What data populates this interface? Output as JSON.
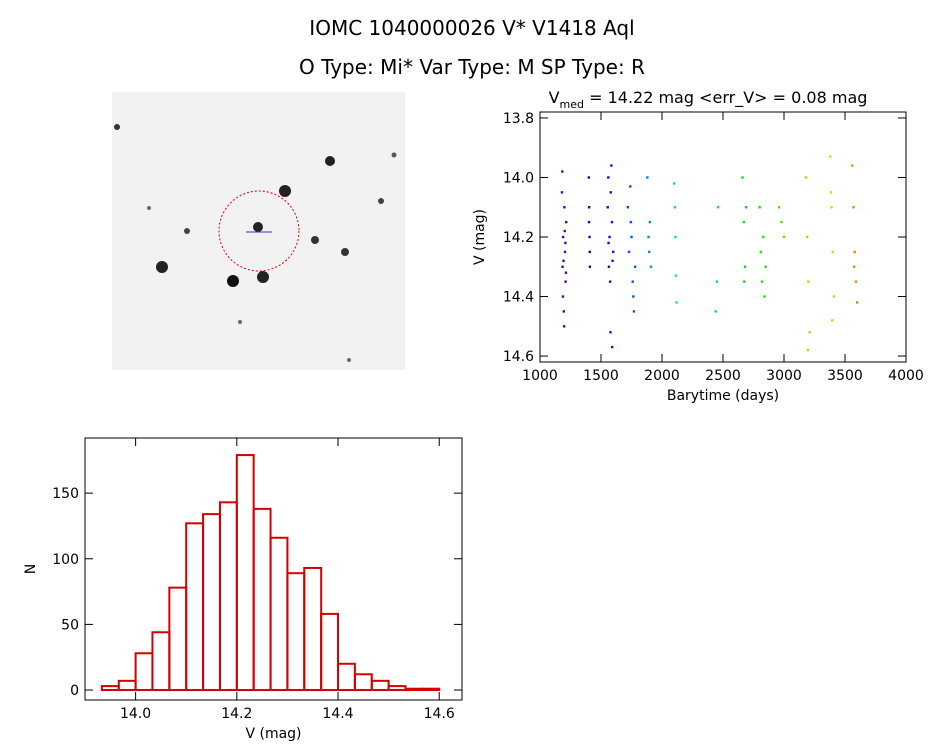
{
  "header": {
    "title": "IOMC 1040000026    V* V1418 Aql",
    "subtitle": "O Type: Mi*  Var Type: M  SP Type: R"
  },
  "chart_data": [
    {
      "type": "scatter",
      "title": "V",
      "title_subscript": "med",
      "title_rest": " = 14.22 mag <err_V> = 0.08 mag",
      "xlabel": "Barytime (days)",
      "ylabel": "V (mag)",
      "xlim": [
        1000,
        4000
      ],
      "xticks": [
        1000,
        1500,
        2000,
        2500,
        3000,
        3500,
        4000
      ],
      "ylim": [
        14.62,
        13.78
      ],
      "yticks": [
        13.8,
        {
          "value": 14,
          "label": "14.0"
        },
        14.2,
        14.4,
        14.6
      ],
      "colormap": "rainbow",
      "x": [
        1180,
        1185,
        1190,
        1195,
        1200,
        1205,
        1210,
        1215,
        1188,
        1198,
        1208,
        1183,
        1193,
        1203,
        1213,
        1400,
        1403,
        1406,
        1409,
        1402,
        1408,
        1555,
        1560,
        1565,
        1570,
        1575,
        1580,
        1585,
        1590,
        1595,
        1600,
        1562,
        1578,
        1592,
        1720,
        1730,
        1740,
        1750,
        1760,
        1770,
        1780,
        1745,
        1765,
        1880,
        1890,
        1900,
        1910,
        1895,
        2100,
        2105,
        2110,
        2115,
        2120,
        2440,
        2450,
        2460,
        2660,
        2670,
        2680,
        2690,
        2675,
        2800,
        2810,
        2820,
        2830,
        2840,
        2850,
        2960,
        2980,
        3000,
        3180,
        3190,
        3200,
        3210,
        3195,
        3380,
        3390,
        3400,
        3410,
        3395,
        3385,
        3560,
        3570,
        3580,
        3590,
        3600,
        3575
      ],
      "values": [
        14.05,
        14.3,
        14.2,
        14.45,
        14.1,
        14.25,
        14.35,
        14.15,
        14.4,
        14.5,
        14.22,
        13.98,
        14.28,
        14.18,
        14.32,
        14.0,
        14.1,
        14.2,
        14.3,
        14.15,
        14.25,
        14.1,
        14.0,
        14.3,
        14.2,
        14.35,
        14.05,
        13.96,
        14.15,
        14.28,
        14.25,
        14.22,
        14.52,
        14.57,
        14.1,
        14.25,
        14.03,
        14.2,
        14.35,
        14.45,
        14.3,
        14.15,
        14.4,
        14.0,
        14.2,
        14.15,
        14.3,
        14.25,
        14.02,
        14.1,
        14.2,
        14.33,
        14.42,
        14.45,
        14.35,
        14.1,
        14.0,
        14.15,
        14.3,
        14.1,
        14.35,
        14.1,
        14.25,
        14.35,
        14.2,
        14.4,
        14.3,
        14.1,
        14.15,
        14.2,
        14.0,
        14.2,
        14.35,
        14.52,
        14.58,
        13.93,
        14.1,
        14.25,
        14.4,
        14.48,
        14.05,
        13.96,
        14.1,
        14.25,
        14.35,
        14.42,
        14.3
      ]
    },
    {
      "type": "histogram",
      "xlabel": "V (mag)",
      "ylabel": "N",
      "color": "#d40000",
      "xlim": [
        13.9,
        14.645
      ],
      "xticks": [
        {
          "value": 14,
          "label": "14.0"
        },
        14.2,
        14.4,
        14.6
      ],
      "ylim": [
        -7.6,
        192
      ],
      "yticks": [
        0,
        50,
        100,
        150
      ],
      "bins": [
        13.9333,
        13.9667,
        14.0,
        14.0333,
        14.0667,
        14.1,
        14.1333,
        14.1667,
        14.2,
        14.2333,
        14.2667,
        14.3,
        14.3333,
        14.3667,
        14.4,
        14.4333,
        14.4667,
        14.5,
        14.5333,
        14.5667,
        14.6
      ],
      "values": [
        3,
        7,
        28,
        44,
        78,
        127,
        134,
        143,
        179,
        138,
        116,
        89,
        93,
        58,
        20,
        12,
        7,
        3,
        1,
        1
      ]
    }
  ]
}
